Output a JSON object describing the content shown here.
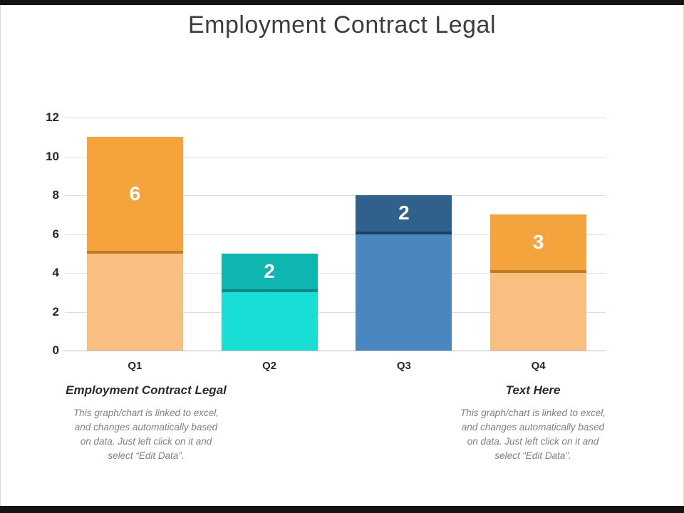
{
  "slide": {
    "title": "Employment Contract Legal"
  },
  "chart_data": {
    "type": "bar",
    "stacked": true,
    "title": "Employment Contract Legal",
    "xlabel": "",
    "ylabel": "",
    "categories": [
      "Q1",
      "Q2",
      "Q3",
      "Q4"
    ],
    "series": [
      {
        "name": "base",
        "values": [
          5,
          3,
          6,
          4
        ],
        "colors": [
          "#F8BF80",
          "#18DED6",
          "#4A86BF",
          "#F8BF80"
        ],
        "show_labels": false
      },
      {
        "name": "top",
        "values": [
          6,
          2,
          2,
          3
        ],
        "colors": [
          "#F4A33D",
          "#0FB6AF",
          "#30618D",
          "#F4A33D"
        ],
        "shadow_colors": [
          "#C07B21",
          "#0A8A84",
          "#1E4059",
          "#C07B21"
        ],
        "show_labels": true
      }
    ],
    "ylim": [
      0,
      12
    ],
    "yticks": [
      0,
      2,
      4,
      6,
      8,
      10,
      12
    ],
    "grid": true,
    "legend_position": "none",
    "data_label_color": "#FFFFFF"
  },
  "footers": [
    {
      "heading": "Employment Contract Legal",
      "caption_lines": [
        "This graph/chart is linked to excel,",
        "and changes automatically based",
        "on data. Just left click on it and",
        "select “Edit Data”."
      ]
    },
    {
      "heading": "Text Here",
      "caption_lines": [
        "This graph/chart is linked to excel,",
        "and changes automatically based",
        "on data. Just left click on it and",
        "select “Edit Data”."
      ]
    }
  ]
}
